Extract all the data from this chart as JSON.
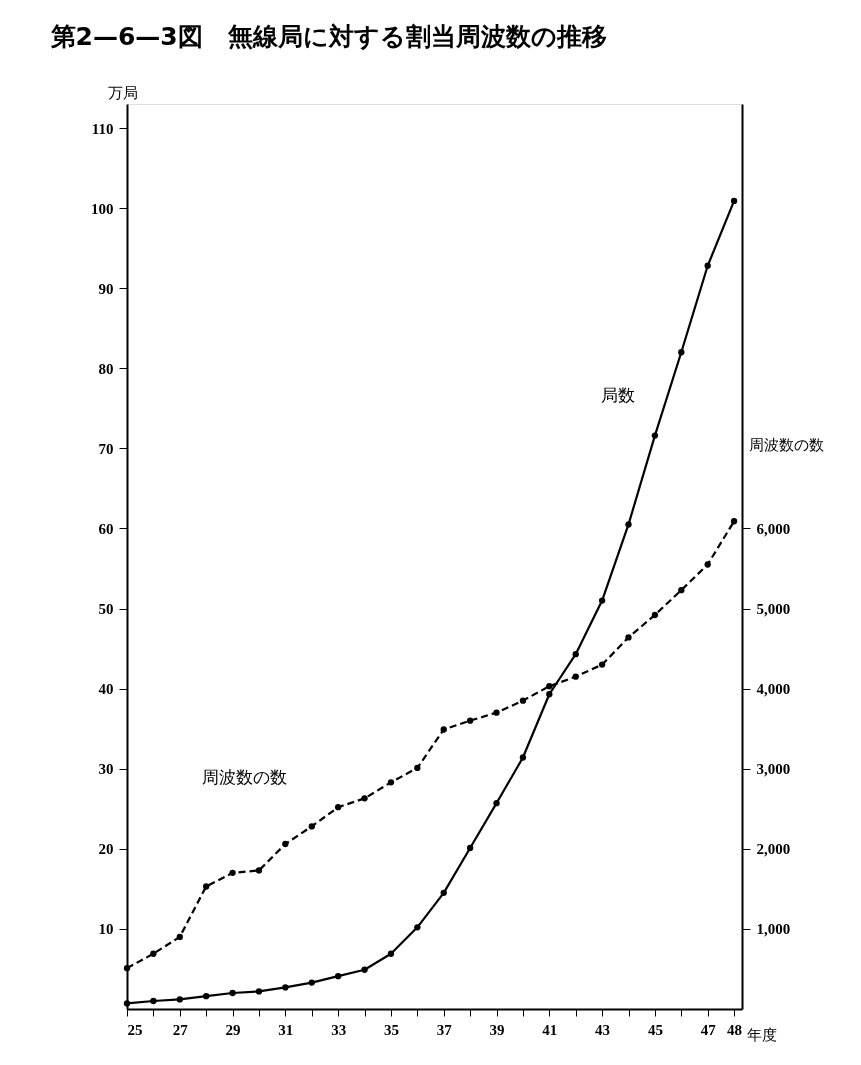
{
  "chart_data": {
    "type": "line",
    "title": "第2—6—3図　無線局に対する割当周波数の推移",
    "xlabel": "年度",
    "ylabel": "万局",
    "y2label": "周波数の数",
    "x": [
      25,
      26,
      27,
      28,
      29,
      30,
      31,
      32,
      33,
      34,
      35,
      36,
      37,
      38,
      39,
      40,
      41,
      42,
      43,
      44,
      45,
      46,
      47,
      48
    ],
    "series": [
      {
        "name": "局数",
        "color": "#000000",
        "line_style": "solid",
        "values": [
          0.7,
          1.0,
          1.2,
          1.6,
          2.0,
          2.2,
          2.7,
          3.3,
          4.1,
          4.9,
          6.9,
          10.2,
          14.5,
          20.1,
          25.7,
          31.4,
          39.3,
          44.3,
          51.0,
          60.5,
          71.6,
          82.0,
          92.8,
          100.9
        ]
      },
      {
        "name": "周波数の数",
        "axis": "y2",
        "color": "#000000",
        "line_style": "dashed",
        "values": [
          510,
          690,
          900,
          1530,
          1700,
          1730,
          2060,
          2280,
          2520,
          2630,
          2830,
          3010,
          3490,
          3600,
          3700,
          3850,
          4030,
          4150,
          4300,
          4640,
          4920,
          5230,
          5550,
          6090
        ]
      }
    ],
    "xlim": [
      25,
      48.3
    ],
    "xticks": [
      25,
      {
        "value": 26,
        "label": null
      },
      27,
      {
        "value": 28,
        "label": null
      },
      29,
      {
        "value": 30,
        "label": null
      },
      31,
      {
        "value": 32,
        "label": null
      },
      33,
      {
        "value": 34,
        "label": null
      },
      35,
      {
        "value": 36,
        "label": null
      },
      37,
      {
        "value": 38,
        "label": null
      },
      39,
      {
        "value": 40,
        "label": null
      },
      41,
      {
        "value": 42,
        "label": null
      },
      43,
      {
        "value": 44,
        "label": null
      },
      45,
      {
        "value": 46,
        "label": null
      },
      47,
      48
    ],
    "ylim": [
      0,
      113
    ],
    "yticks": [
      10,
      20,
      30,
      40,
      50,
      60,
      70,
      80,
      90,
      100,
      110
    ],
    "y2lim": [
      0,
      11300
    ],
    "y2ticks": [
      {
        "value": 1000,
        "label": "1,000"
      },
      {
        "value": 2000,
        "label": "2,000"
      },
      {
        "value": 3000,
        "label": "3,000"
      },
      {
        "value": 4000,
        "label": "4,000"
      },
      {
        "value": 5000,
        "label": "5,000"
      },
      {
        "value": 6000,
        "label": "6,000"
      }
    ],
    "grid": false,
    "marker": "circle"
  }
}
